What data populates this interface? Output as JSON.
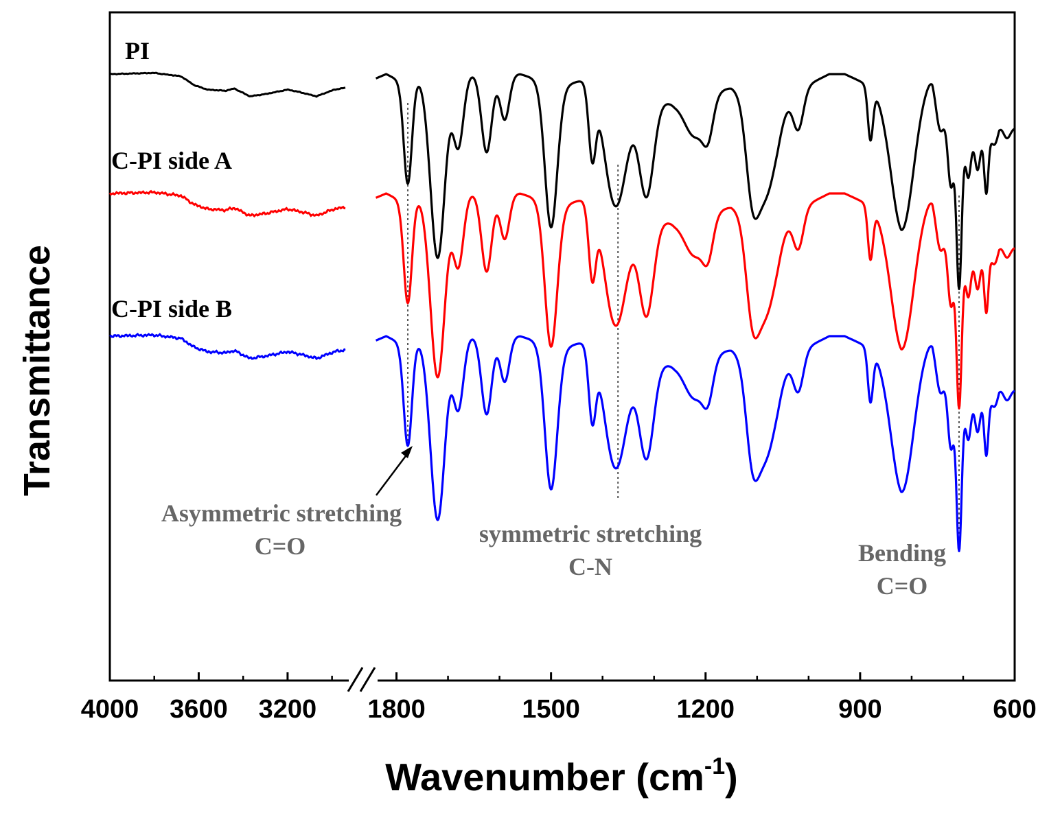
{
  "chart_data": {
    "type": "line",
    "title": "",
    "xlabel": "Wavenumber (cm",
    "xlabel_superscript": "-1",
    "xlabel_close": ")",
    "ylabel": "Transmittance",
    "x_segments": [
      {
        "range": [
          4000,
          2900
        ],
        "ticks": [
          4000,
          3600,
          3200
        ],
        "tick_labels": [
          "4000",
          "3600",
          "3200"
        ]
      },
      {
        "range": [
          1850,
          600
        ],
        "ticks": [
          1800,
          1500,
          1200,
          900,
          600
        ],
        "tick_labels": [
          "1800",
          "1500",
          "1200",
          "900",
          "600"
        ]
      }
    ],
    "axis_break": "//",
    "y_ticks": "none",
    "grid": false,
    "series": [
      {
        "name": "PI",
        "color": "#000000",
        "offset": 0.0
      },
      {
        "name": "C-PI side A",
        "color": "#ff0000",
        "offset": 1.0
      },
      {
        "name": "C-PI side B",
        "color": "#0000ff",
        "offset": 2.0
      }
    ],
    "high_wavenumber_profile": [
      {
        "x": 4000,
        "y": 0.0
      },
      {
        "x": 3800,
        "y": -0.01
      },
      {
        "x": 3680,
        "y": 0.02
      },
      {
        "x": 3620,
        "y": 0.1
      },
      {
        "x": 3560,
        "y": 0.14
      },
      {
        "x": 3480,
        "y": 0.15
      },
      {
        "x": 3440,
        "y": 0.13
      },
      {
        "x": 3370,
        "y": 0.2
      },
      {
        "x": 3300,
        "y": 0.18
      },
      {
        "x": 3200,
        "y": 0.14
      },
      {
        "x": 3150,
        "y": 0.16
      },
      {
        "x": 3070,
        "y": 0.2
      },
      {
        "x": 2990,
        "y": 0.14
      },
      {
        "x": 2930,
        "y": 0.12
      }
    ],
    "fingerprint_profile": {
      "baseline": [
        {
          "x": 1850,
          "y": 0.05
        },
        {
          "x": 1820,
          "y": 0.0
        },
        {
          "x": 1795,
          "y": 0.05
        },
        {
          "x": 1700,
          "y": 0.0
        },
        {
          "x": 1560,
          "y": 0.0
        },
        {
          "x": 1480,
          "y": 0.1
        },
        {
          "x": 1410,
          "y": 0.0
        },
        {
          "x": 1300,
          "y": 0.2
        },
        {
          "x": 1260,
          "y": 0.22
        },
        {
          "x": 1150,
          "y": 0.1
        },
        {
          "x": 1060,
          "y": 0.2
        },
        {
          "x": 960,
          "y": 0.0
        },
        {
          "x": 930,
          "y": 0.0
        },
        {
          "x": 820,
          "y": 0.2
        },
        {
          "x": 760,
          "y": 0.0
        },
        {
          "x": 700,
          "y": 0.5
        },
        {
          "x": 660,
          "y": 0.48
        },
        {
          "x": 630,
          "y": 0.28
        },
        {
          "x": 600,
          "y": 0.4
        }
      ],
      "peaks": [
        {
          "x": 1778,
          "depth": 0.8,
          "width": 8
        },
        {
          "x": 1720,
          "depth": 1.4,
          "width": 14
        },
        {
          "x": 1680,
          "depth": 0.55,
          "width": 10
        },
        {
          "x": 1625,
          "depth": 0.6,
          "width": 10
        },
        {
          "x": 1590,
          "depth": 0.35,
          "width": 9
        },
        {
          "x": 1500,
          "depth": 1.1,
          "width": 12
        },
        {
          "x": 1420,
          "depth": 0.55,
          "width": 7
        },
        {
          "x": 1375,
          "depth": 0.95,
          "width": 22
        },
        {
          "x": 1315,
          "depth": 0.75,
          "width": 14
        },
        {
          "x": 1220,
          "depth": 0.3,
          "width": 20
        },
        {
          "x": 1195,
          "depth": 0.25,
          "width": 10
        },
        {
          "x": 1110,
          "depth": 0.5,
          "width": 12
        },
        {
          "x": 1085,
          "depth": 0.75,
          "width": 22
        },
        {
          "x": 1020,
          "depth": 0.3,
          "width": 10
        },
        {
          "x": 880,
          "depth": 0.4,
          "width": 5
        },
        {
          "x": 818,
          "depth": 1.0,
          "width": 22
        },
        {
          "x": 745,
          "depth": 0.3,
          "width": 8
        },
        {
          "x": 724,
          "depth": 0.55,
          "width": 6
        },
        {
          "x": 708,
          "depth": 1.2,
          "width": 5
        },
        {
          "x": 690,
          "depth": 0.3,
          "width": 5
        },
        {
          "x": 672,
          "depth": 0.25,
          "width": 5
        },
        {
          "x": 655,
          "depth": 0.45,
          "width": 4
        },
        {
          "x": 638,
          "depth": 0.2,
          "width": 8
        },
        {
          "x": 616,
          "depth": 0.15,
          "width": 8
        }
      ]
    },
    "reference_lines": [
      {
        "x": 1778,
        "label": "Asymmetric stretching",
        "label2": "C=O"
      },
      {
        "x": 1370,
        "label": "symmetric stretching",
        "label2": "C-N"
      },
      {
        "x": 708,
        "label": "Bending",
        "label2": "C=O"
      }
    ]
  }
}
